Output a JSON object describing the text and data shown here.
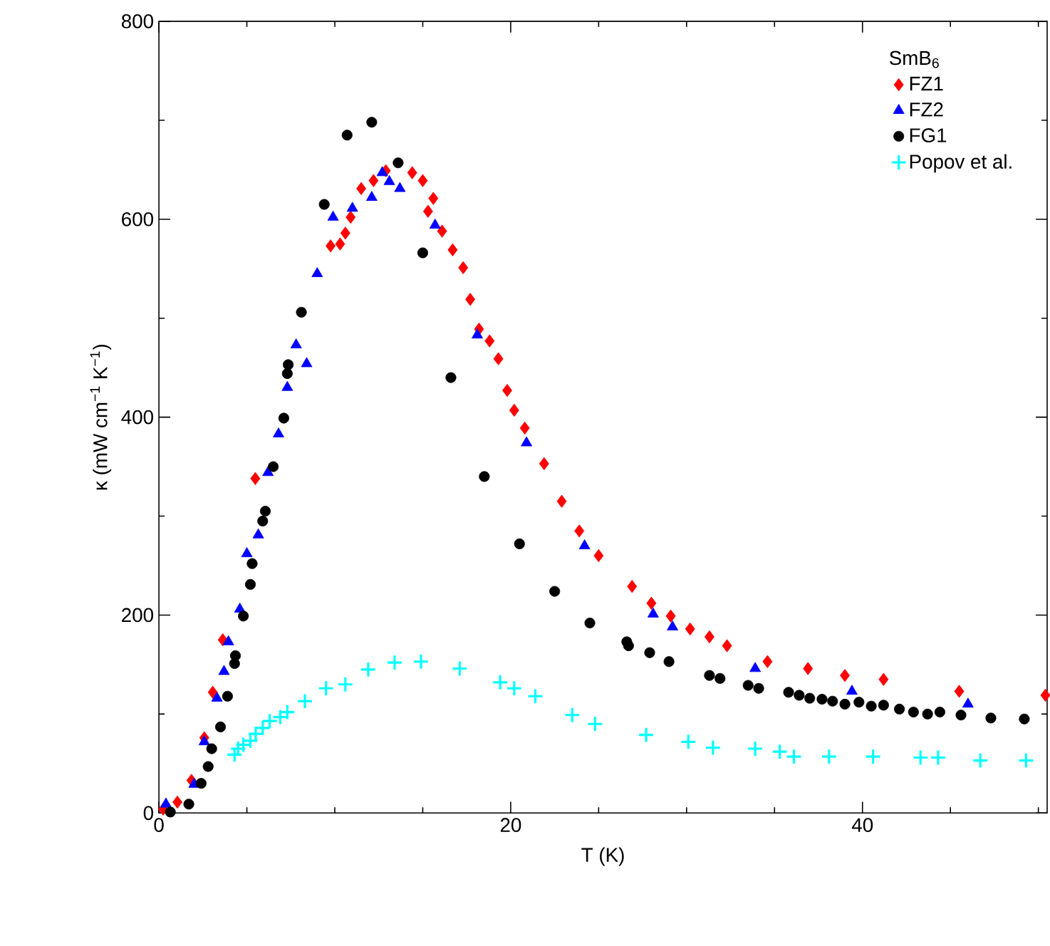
{
  "chart_data": {
    "type": "scatter",
    "xlabel": "T (K)",
    "ylabel": "κ (mW cm$^{−1}$ K$^{−1}$)",
    "legend_title": "SmB$_{6}$",
    "legend": "top right",
    "grid": false,
    "xlim": [
      0,
      50.5
    ],
    "ylim": [
      0,
      800
    ],
    "xticks": [
      0,
      {
        "value": 5,
        "label": null
      },
      {
        "value": 10,
        "label": null
      },
      {
        "value": 15,
        "label": null
      },
      20,
      {
        "value": 25,
        "label": null
      },
      {
        "value": 30,
        "label": null
      },
      {
        "value": 35,
        "label": null
      },
      40,
      {
        "value": 45,
        "label": null
      },
      {
        "value": 50,
        "label": null
      }
    ],
    "yticks": [
      0,
      {
        "value": 100,
        "label": null
      },
      200,
      {
        "value": 300,
        "label": null
      },
      400,
      {
        "value": 500,
        "label": null
      },
      600,
      {
        "value": 700,
        "label": null
      },
      800
    ],
    "series": [
      {
        "name": "FZ1",
        "color": "#ff0000",
        "marker": "diamond",
        "x": [
          0.24,
          1.05,
          1.85,
          2.58,
          3.06,
          3.63,
          5.48,
          9.76,
          10.3,
          10.6,
          10.9,
          11.5,
          12.2,
          12.9,
          13.7,
          14.4,
          15.0,
          15.6,
          15.3,
          16.1,
          16.7,
          17.3,
          17.7,
          18.2,
          18.8,
          19.3,
          19.8,
          20.2,
          20.8,
          21.9,
          22.9,
          23.9,
          25.0,
          26.9,
          28.0,
          29.1,
          30.2,
          31.3,
          32.3,
          34.6,
          36.9,
          39.0,
          41.2,
          45.5,
          50.4
        ],
        "values": [
          4,
          11,
          33,
          76,
          122,
          175,
          338,
          573,
          575,
          586,
          602,
          631,
          639,
          649,
          null,
          647,
          639,
          621,
          608,
          588,
          569,
          551,
          519,
          489,
          477,
          459,
          427,
          407,
          389,
          353,
          315,
          285,
          260,
          229,
          212,
          199,
          186,
          178,
          169,
          153,
          146,
          139,
          135,
          123,
          119
        ]
      },
      {
        "name": "FZ2",
        "color": "#0000ff",
        "marker": "triangle",
        "x": [
          0.4,
          2.0,
          2.58,
          3.3,
          3.7,
          3.95,
          4.6,
          5.0,
          5.65,
          6.2,
          6.8,
          7.3,
          7.8,
          8.4,
          9.0,
          9.9,
          11.0,
          12.1,
          12.7,
          13.1,
          13.7,
          15.7,
          18.1,
          20.9,
          24.2,
          28.1,
          29.2,
          33.9,
          39.4,
          46.0
        ],
        "values": [
          9,
          29,
          72,
          116,
          143,
          173,
          206,
          262,
          281,
          344,
          383,
          430,
          473,
          454,
          545,
          602,
          611,
          622,
          647,
          638,
          631,
          594,
          483,
          374,
          270,
          201,
          188,
          146,
          123,
          110
        ]
      },
      {
        "name": "FG1",
        "color": "#000000",
        "marker": "circle",
        "x": [
          0.65,
          1.7,
          2.4,
          2.8,
          3.0,
          3.5,
          3.9,
          4.3,
          4.35,
          4.8,
          5.2,
          5.3,
          5.9,
          6.05,
          6.5,
          7.1,
          7.3,
          7.35,
          8.1,
          9.4,
          10.7,
          12.1,
          13.6,
          15.0,
          16.6,
          18.5,
          20.5,
          22.5,
          24.5,
          26.6,
          26.7,
          27.9,
          29.0,
          31.3,
          31.9,
          33.5,
          34.1,
          35.8,
          36.4,
          37.0,
          37.7,
          38.3,
          39.0,
          39.8,
          40.5,
          41.2,
          42.1,
          42.9,
          43.7,
          44.4,
          45.6,
          47.3,
          49.2
        ],
        "values": [
          1,
          9,
          30,
          47,
          65,
          87,
          118,
          151,
          159,
          199,
          231,
          252,
          295,
          305,
          350,
          399,
          444,
          453,
          506,
          615,
          685,
          698,
          657,
          566,
          440,
          340,
          272,
          224,
          192,
          173,
          169,
          162,
          153,
          139,
          136,
          129,
          126,
          122,
          119,
          116,
          115,
          113,
          110,
          112,
          108,
          109,
          105,
          102,
          100,
          102,
          99,
          96,
          95
        ]
      },
      {
        "name": "Popov et al.",
        "color": "#00ffff",
        "marker": "cross",
        "x": [
          4.3,
          4.5,
          4.8,
          5.2,
          5.5,
          5.9,
          6.3,
          6.9,
          7.3,
          8.3,
          9.5,
          10.6,
          11.9,
          13.4,
          14.9,
          17.1,
          19.4,
          20.2,
          21.4,
          23.5,
          24.8,
          27.7,
          30.1,
          31.5,
          33.9,
          35.3,
          36.1,
          38.1,
          40.6,
          43.3,
          44.3,
          46.7,
          49.3
        ],
        "values": [
          59,
          65,
          69,
          73,
          80,
          86,
          93,
          97,
          102,
          113,
          126,
          130,
          145,
          152,
          153,
          146,
          132,
          126,
          118,
          99,
          90,
          79,
          72,
          66,
          65,
          62,
          57,
          57,
          57,
          56,
          56,
          53,
          53
        ]
      }
    ]
  }
}
